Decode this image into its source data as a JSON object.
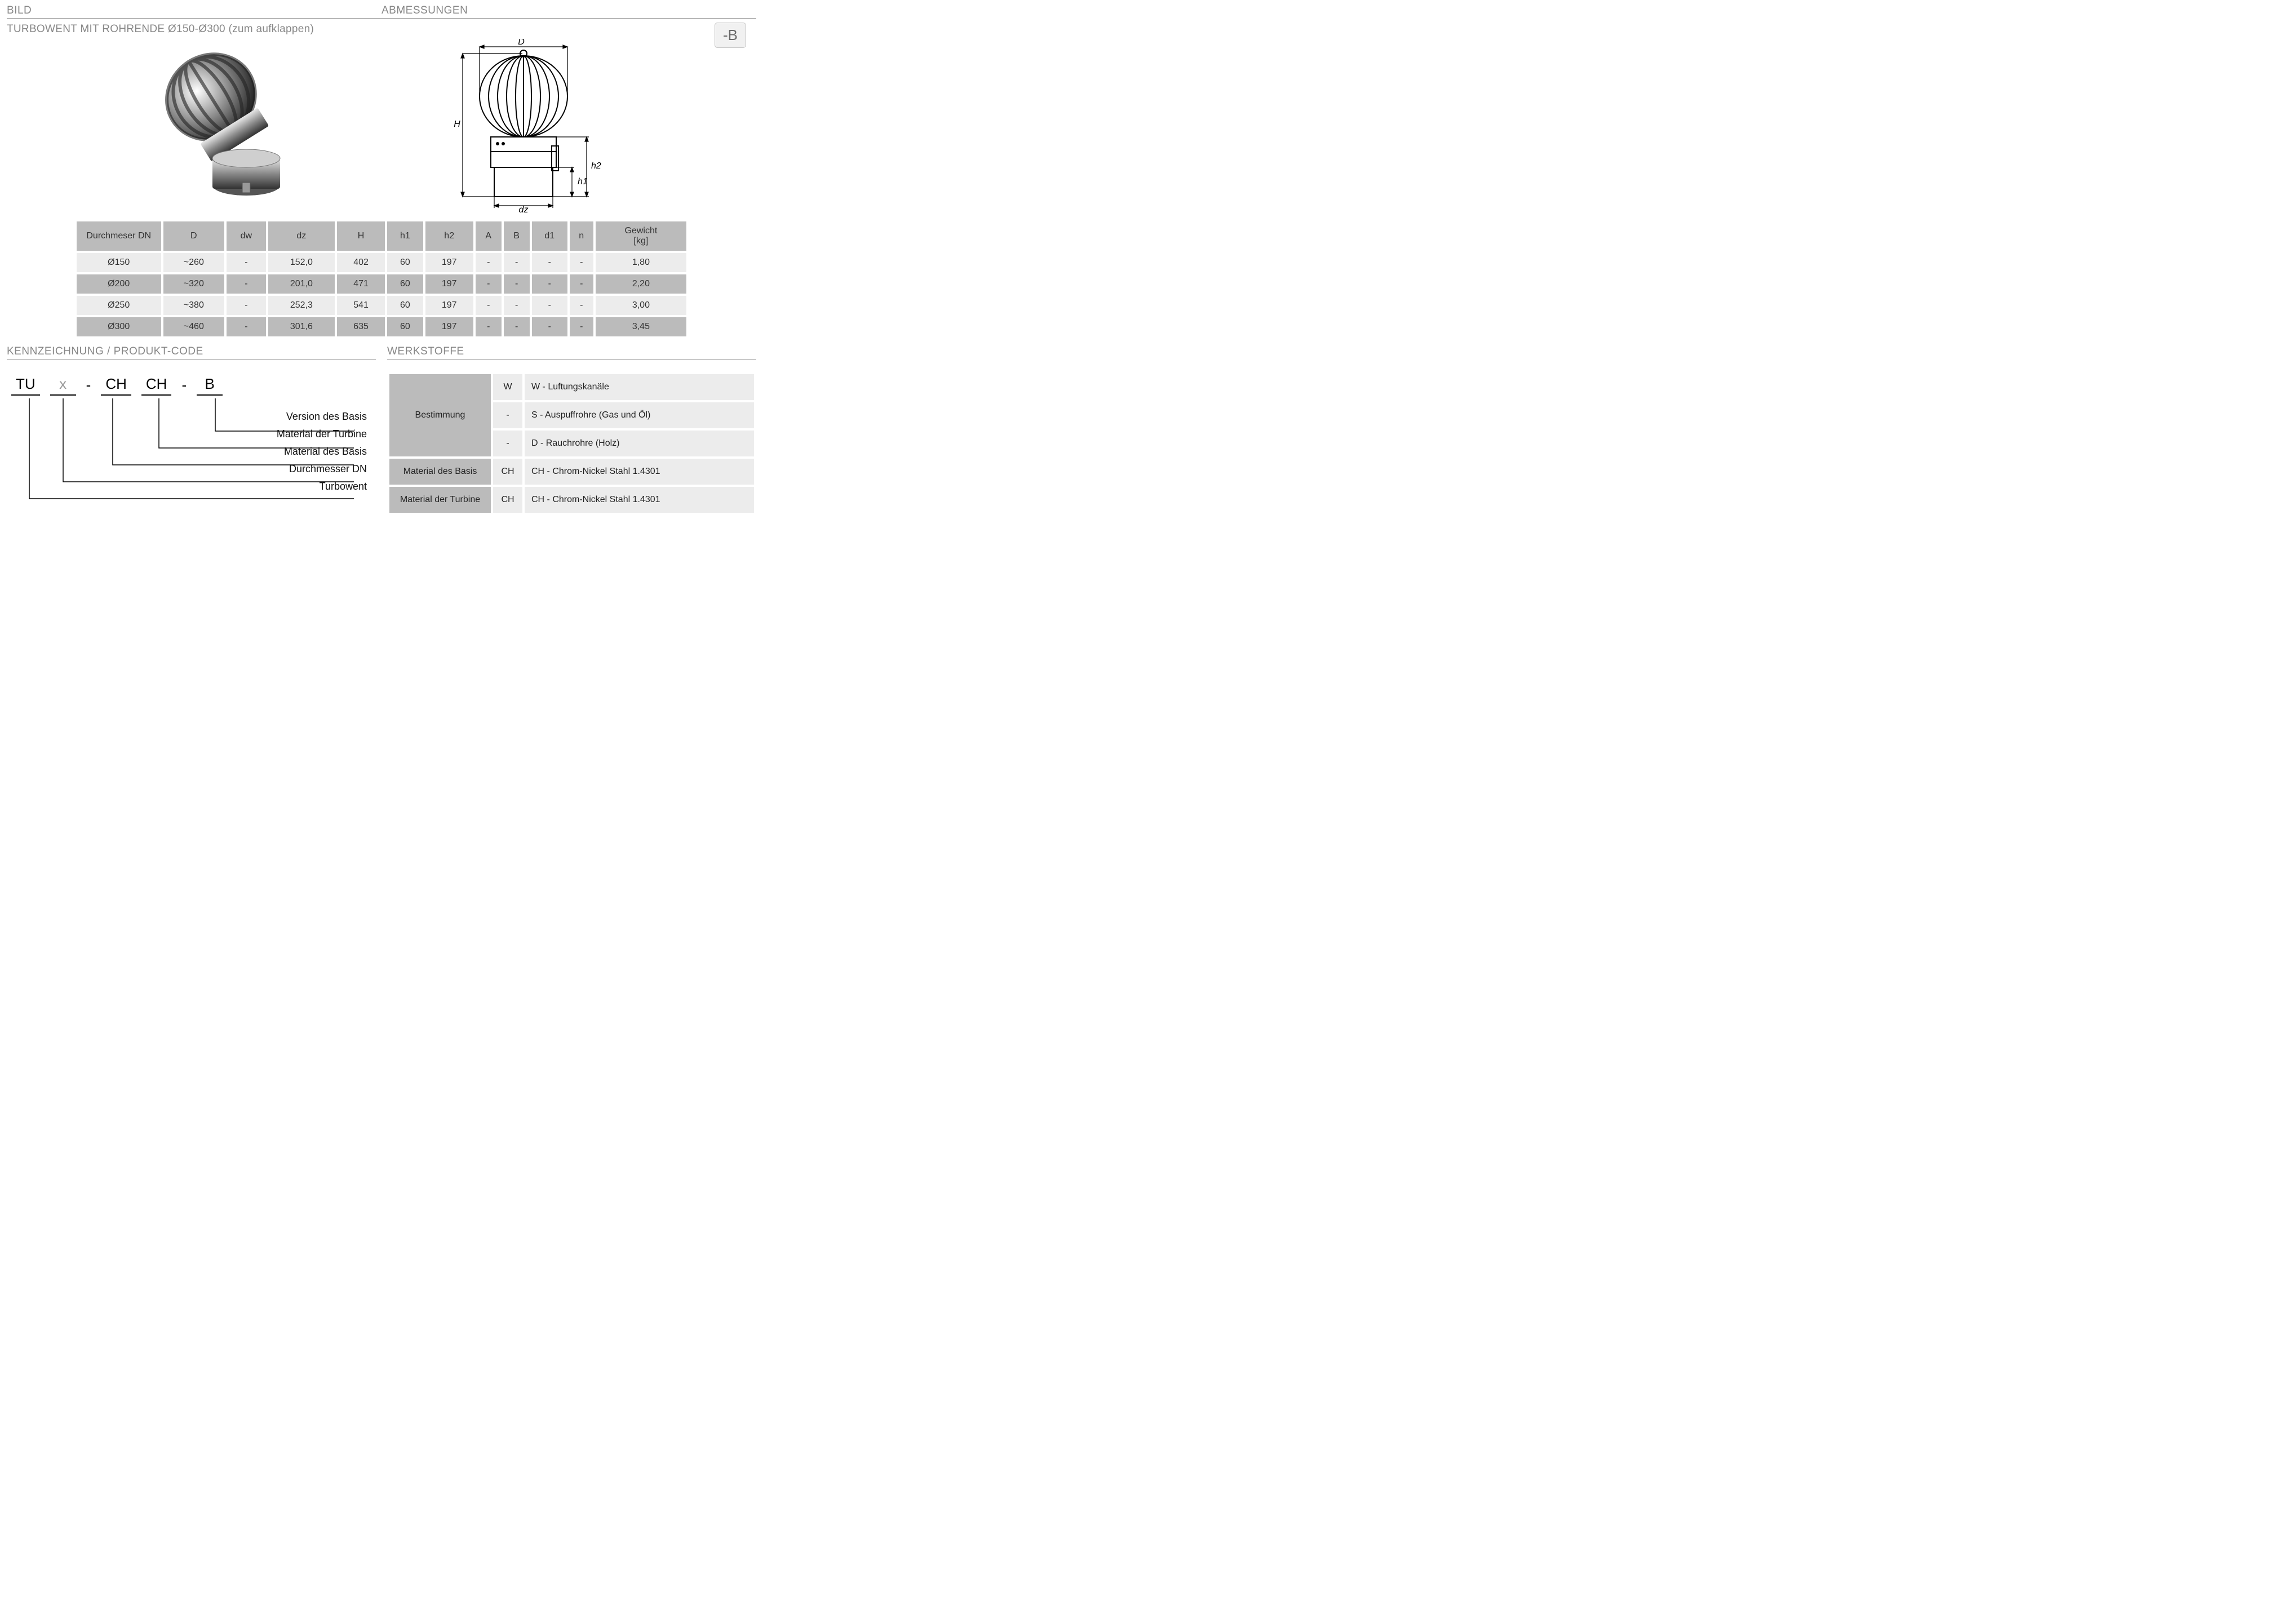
{
  "header": {
    "bild": "BILD",
    "abm": "ABMESSUNGEN",
    "title": "TURBOWENT MIT ROHRENDE Ø150-Ø300 (zum aufklappen)",
    "badge": "-B"
  },
  "colors": {
    "header_gray": "#bbbbbb",
    "row_light": "#ececec",
    "label_gray": "#878787",
    "border": "#999999",
    "bg": "#ffffff"
  },
  "diagram": {
    "labels": {
      "D": "D",
      "H": "H",
      "dz": "dz",
      "h1": "h1",
      "h2": "h2"
    }
  },
  "dim": {
    "headers": [
      "Durchmeser DN",
      "D",
      "dw",
      "dz",
      "H",
      "h1",
      "h2",
      "A",
      "B",
      "d1",
      "n",
      "Gewicht [kg]"
    ],
    "rows": [
      [
        "Ø150",
        "~260",
        "-",
        "152,0",
        "402",
        "60",
        "197",
        "-",
        "-",
        "-",
        "-",
        "1,80"
      ],
      [
        "Ø200",
        "~320",
        "-",
        "201,0",
        "471",
        "60",
        "197",
        "-",
        "-",
        "-",
        "-",
        "2,20"
      ],
      [
        "Ø250",
        "~380",
        "-",
        "252,3",
        "541",
        "60",
        "197",
        "-",
        "-",
        "-",
        "-",
        "3,00"
      ],
      [
        "Ø300",
        "~460",
        "-",
        "301,6",
        "635",
        "60",
        "197",
        "-",
        "-",
        "-",
        "-",
        "3,45"
      ]
    ]
  },
  "mid": {
    "kenn": "KENNZEICHNUNG  / PRODUKT-CODE",
    "werk": "WERKSTOFFE"
  },
  "code": {
    "parts": [
      "TU",
      "x",
      "-",
      "CH",
      "CH",
      "-",
      "B"
    ],
    "labels": [
      "Version des Basis",
      "Material der Turbine",
      "Material des Basis",
      "Durchmesser DN",
      "Turbowent"
    ]
  },
  "mat": {
    "rows": [
      {
        "k": "Bestimmung",
        "span": 3,
        "cells": [
          {
            "c": "W",
            "d": "W - Luftungskanäle"
          },
          {
            "c": "-",
            "d": "S - Auspuffrohre (Gas und Öl)"
          },
          {
            "c": "-",
            "d": "D - Rauchrohre (Holz)"
          }
        ]
      },
      {
        "k": "Material des Basis",
        "span": 1,
        "cells": [
          {
            "c": "CH",
            "d": "CH - Chrom-Nickel Stahl 1.4301"
          }
        ]
      },
      {
        "k": "Material der Turbine",
        "span": 1,
        "cells": [
          {
            "c": "CH",
            "d": "CH - Chrom-Nickel Stahl 1.4301"
          }
        ]
      }
    ]
  }
}
